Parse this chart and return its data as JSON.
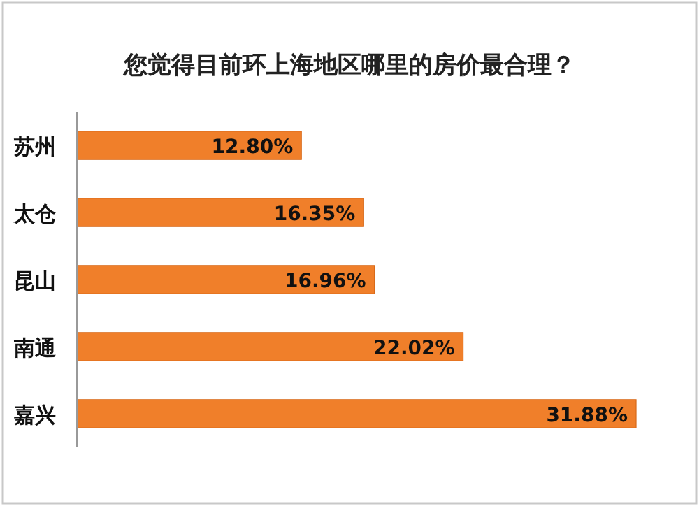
{
  "chart_data": {
    "type": "bar",
    "orientation": "horizontal",
    "title": "您觉得目前环上海地区哪里的房价最合理？",
    "categories": [
      "苏州",
      "太仓",
      "昆山",
      "南通",
      "嘉兴"
    ],
    "values": [
      12.8,
      16.35,
      16.96,
      22.02,
      31.88
    ],
    "value_labels": [
      "12.80%",
      "16.35%",
      "16.96%",
      "22.02%",
      "31.88%"
    ],
    "color": "#f07f2a"
  }
}
